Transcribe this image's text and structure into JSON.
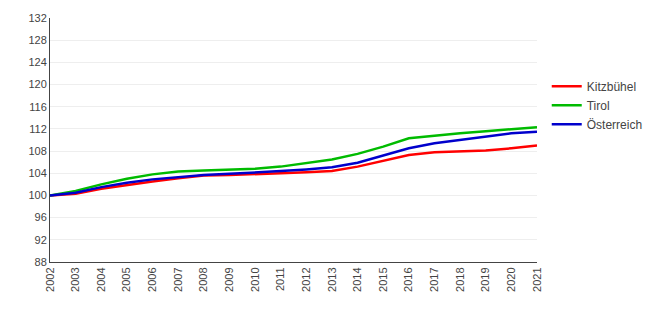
{
  "chart_data": {
    "type": "line",
    "x": [
      2002,
      2003,
      2004,
      2005,
      2006,
      2007,
      2008,
      2009,
      2010,
      2011,
      2012,
      2013,
      2014,
      2015,
      2016,
      2017,
      2018,
      2019,
      2020,
      2021
    ],
    "series": [
      {
        "name": "Kitzbühel",
        "color": "#FF0000",
        "values": [
          100.0,
          100.3,
          101.2,
          101.9,
          102.5,
          103.1,
          103.6,
          103.7,
          103.8,
          104.0,
          104.2,
          104.4,
          105.2,
          106.2,
          107.3,
          107.8,
          108.0,
          108.1,
          108.5,
          109.0
        ]
      },
      {
        "name": "Tirol",
        "color": "#00BB00",
        "values": [
          100.0,
          100.8,
          102.0,
          103.0,
          103.8,
          104.3,
          104.5,
          104.6,
          104.8,
          105.2,
          105.8,
          106.5,
          107.5,
          108.8,
          110.3,
          110.8,
          111.2,
          111.6,
          112.0,
          112.3
        ]
      },
      {
        "name": "Österreich",
        "color": "#0000CC",
        "values": [
          100.0,
          100.5,
          101.5,
          102.3,
          102.9,
          103.3,
          103.7,
          103.9,
          104.1,
          104.4,
          104.7,
          105.1,
          105.9,
          107.2,
          108.5,
          109.4,
          110.0,
          110.5,
          111.2,
          111.5
        ]
      }
    ],
    "xlim": [
      2002,
      2021
    ],
    "xticks": [
      2002,
      2003,
      2004,
      2005,
      2006,
      2007,
      2008,
      2009,
      2010,
      2011,
      2012,
      2013,
      2014,
      2015,
      2016,
      2017,
      2018,
      2019,
      2020,
      2021
    ],
    "ylim": [
      88,
      132
    ],
    "yticks": [
      88,
      92,
      96,
      100,
      104,
      108,
      112,
      116,
      120,
      124,
      128,
      132
    ],
    "grid": true,
    "legend": "right"
  }
}
